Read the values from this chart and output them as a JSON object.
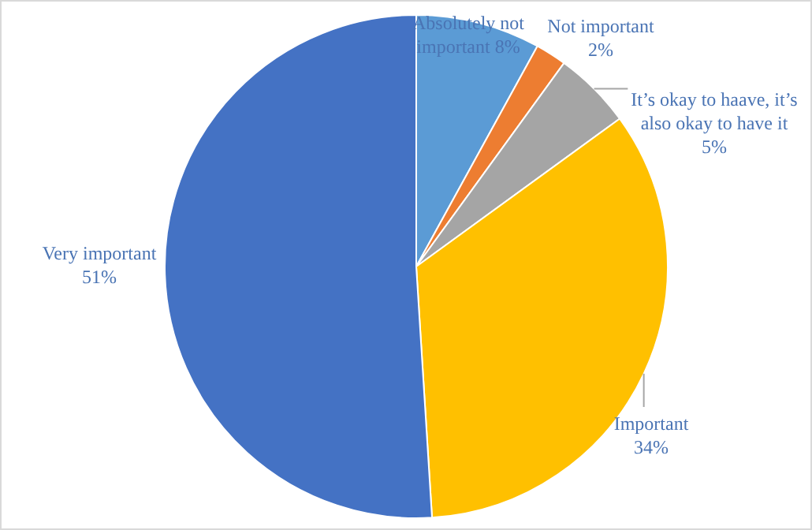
{
  "chart_data": {
    "type": "pie",
    "categories": [
      "Absolutely not important",
      "Not important",
      "It’s okay to haave, it’s also okay to have it",
      "Important",
      "Very important"
    ],
    "values": [
      8,
      2,
      5,
      34,
      51
    ],
    "value_labels": [
      "8%",
      "2%",
      "5%",
      "34%",
      "51%"
    ],
    "colors": [
      "#5b9bd5",
      "#ed7d31",
      "#a5a5a5",
      "#ffc000",
      "#4472c4"
    ]
  }
}
